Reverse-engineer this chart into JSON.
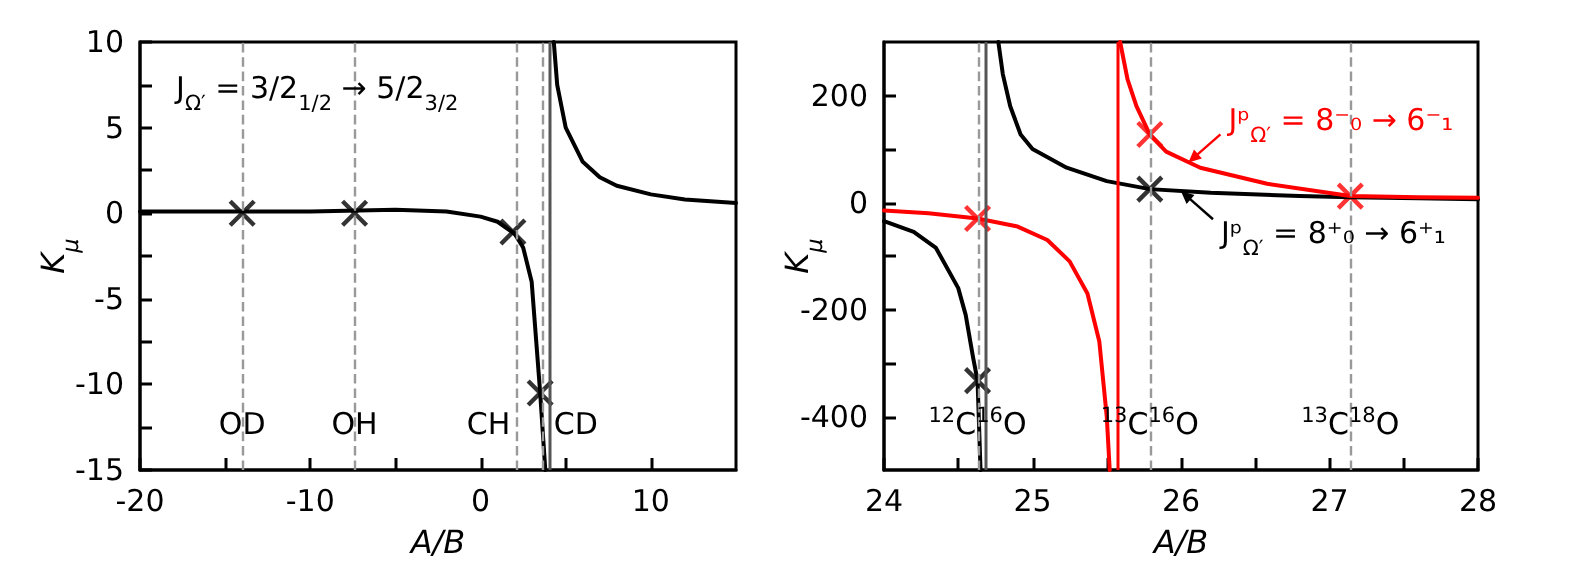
{
  "chart_data": [
    {
      "type": "line",
      "xlabel": "A/B",
      "ylabel": "K$_{μ}$",
      "xlim": [
        -20,
        15
      ],
      "xticks": [
        -20,
        {
          "value": -15,
          "label": null
        },
        -10,
        {
          "value": -5,
          "label": null
        },
        0,
        {
          "value": 5,
          "label": null
        },
        10
      ],
      "ylim": [
        -15,
        10
      ],
      "yticks": [
        -15,
        {
          "value": -12.5,
          "label": null
        },
        -10,
        {
          "value": -7.5,
          "label": null
        },
        -5,
        {
          "value": -2.5,
          "label": null
        },
        0,
        {
          "value": 2.5,
          "label": null
        },
        5,
        {
          "value": 7.5,
          "label": null
        },
        10
      ],
      "series": [
        {
          "type": "line",
          "color": "#000000",
          "marker": "none",
          "x": [
            -20,
            -15,
            -10,
            -5,
            -2,
            0,
            1,
            2,
            2.5,
            3,
            3.5,
            3.8,
            3.9,
            4.3,
            4.5,
            5,
            6,
            7,
            8,
            10,
            12,
            15
          ],
          "values": [
            0.1,
            0.1,
            0.1,
            0.2,
            0.1,
            -0.2,
            -0.5,
            -1.2,
            -2,
            -4,
            -10.5,
            -15,
            null,
            10,
            7.5,
            5,
            3,
            2.1,
            1.6,
            1.1,
            0.8,
            0.6
          ]
        },
        {
          "type": "scatter",
          "color": "#000000",
          "marker": "cross",
          "x": [
            -14,
            -7.4,
            1.9,
            3.5
          ],
          "values": [
            0,
            0,
            -1.1,
            -10.5
          ]
        }
      ],
      "ref_lines": [
        {
          "axis": "x",
          "value": -14,
          "label": "OD",
          "color": "#999999",
          "line_style": "dashed"
        },
        {
          "axis": "x",
          "value": -7.4,
          "label": "OH",
          "color": "#999999",
          "line_style": "dashed"
        },
        {
          "axis": "x",
          "value": 2.1,
          "label": "CH",
          "color": "#999999",
          "line_style": "dashed"
        },
        {
          "axis": "x",
          "value": 3.6,
          "label": "CD",
          "color": "#999999",
          "line_style": "dashed"
        },
        {
          "axis": "x",
          "value": 4.0,
          "color": "#555555",
          "line_style": "solid"
        }
      ],
      "annotations": [
        "J$_{Ω′}$ = 3/2$_{1/2}$ → 5/2$_{3/2}$"
      ]
    },
    {
      "type": "line",
      "xlabel": "A/B",
      "ylabel": "K$_{μ}$",
      "xlim": [
        24,
        28
      ],
      "xticks": [
        24,
        {
          "value": 24.5,
          "label": null
        },
        25,
        {
          "value": 25.5,
          "label": null
        },
        26,
        {
          "value": 26.5,
          "label": null
        },
        27,
        {
          "value": 27.5,
          "label": null
        },
        28
      ],
      "ylim": [
        -500,
        300
      ],
      "yticks": [
        -400,
        {
          "value": -300,
          "label": null
        },
        -200,
        {
          "value": -100,
          "label": null
        },
        0,
        {
          "value": 100,
          "label": null
        },
        200
      ],
      "series": [
        {
          "type": "line",
          "color": "#000000",
          "marker": "none",
          "x": [
            24,
            24.2,
            24.35,
            24.5,
            24.55,
            24.6,
            24.63,
            24.65,
            24.7,
            24.77,
            24.8,
            24.85,
            24.92,
            25.0,
            25.23,
            25.5,
            25.79,
            26.2,
            26.8,
            27.14,
            27.6,
            28
          ],
          "values": [
            -35,
            -55,
            -85,
            -160,
            -210,
            -290,
            -333,
            -500,
            null,
            300,
            240,
            180,
            127,
            100,
            65,
            40,
            25,
            18,
            12,
            10,
            8,
            6
          ]
        },
        {
          "type": "line",
          "color": "#ff0000",
          "marker": "none",
          "x": [
            24,
            24.3,
            24.63,
            24.9,
            25.1,
            25.25,
            25.37,
            25.45,
            25.5,
            25.52,
            25.56,
            25.59,
            25.64,
            25.7,
            25.79,
            25.9,
            26.13,
            26.58,
            27.14,
            27.6,
            28
          ],
          "values": [
            -15,
            -20,
            -30,
            -45,
            -70,
            -110,
            -170,
            -260,
            -400,
            -500,
            null,
            300,
            230,
            180,
            127,
            95,
            65,
            35,
            12,
            10,
            9
          ]
        },
        {
          "type": "scatter",
          "color": "#000000",
          "marker": "cross",
          "x": [
            24.63,
            25.79
          ],
          "values": [
            -333,
            25
          ]
        },
        {
          "type": "scatter",
          "color": "#ff0000",
          "marker": "cross",
          "x": [
            24.63,
            25.79,
            27.14
          ],
          "values": [
            -30,
            127,
            12
          ]
        }
      ],
      "ref_lines": [
        {
          "axis": "x",
          "value": 24.63,
          "label": "$^{12}$C$^{16}$O",
          "color": "#999999",
          "line_style": "dashed"
        },
        {
          "axis": "x",
          "value": 24.68,
          "color": "#555555",
          "line_style": "solid"
        },
        {
          "axis": "x",
          "value": 25.57,
          "color": "#ff0000",
          "line_style": "solid"
        },
        {
          "axis": "x",
          "value": 25.79,
          "label": "$^{13}$C$^{16}$O",
          "color": "#999999",
          "line_style": "dashed"
        },
        {
          "axis": "x",
          "value": 27.14,
          "label": "$^{13}$C$^{18}$O",
          "color": "#999999",
          "line_style": "dashed"
        }
      ],
      "annotations": [
        {
          "text": "Jᵖ$_{Ω′}$ = 8⁻₀ → 6⁻₁",
          "x": 26.05,
          "y": 75
        },
        {
          "text": "Jᵖ$_{Ω′}$ = 8⁺₀ → 6⁺₁",
          "x": 26.0,
          "y": 21
        }
      ]
    }
  ]
}
